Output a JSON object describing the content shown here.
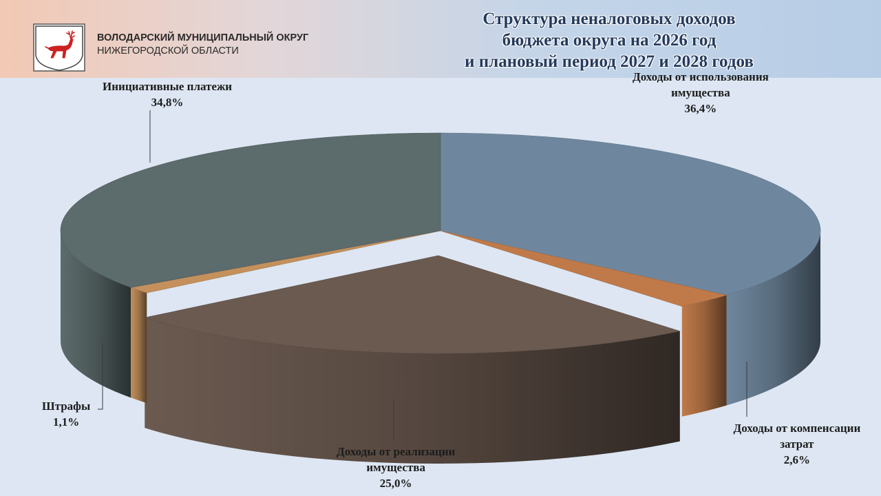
{
  "header": {
    "org_line1": "ВОЛОДАРСКИЙ МУНИЦИПАЛЬНЫЙ ОКРУГ",
    "org_line2": "НИЖЕГОРОДСКОЙ ОБЛАСТИ",
    "title_line1": "Структура неналоговых доходов",
    "title_line2": "бюджета округа на 2026 год",
    "title_line3": "и плановый период 2027 и 2028 годов"
  },
  "chart_data": {
    "type": "pie",
    "title": "Структура неналоговых доходов бюджета округа на 2026 год и плановый период 2027 и 2028 годов",
    "unit": "%",
    "slices": [
      {
        "label_lines": [
          "Доходы от использования",
          "имущества"
        ],
        "value": 36.4,
        "value_label": "36,4%",
        "color": "#6f879e"
      },
      {
        "label_lines": [
          "Доходы от компенсации",
          "затрат"
        ],
        "value": 2.6,
        "value_label": "2,6%",
        "color": "#c07a4a"
      },
      {
        "label_lines": [
          "Доходы от реализации",
          "имущества"
        ],
        "value": 25.0,
        "value_label": "25,0%",
        "color": "#6b5a50"
      },
      {
        "label_lines": [
          "Штрафы"
        ],
        "value": 1.1,
        "value_label": "1,1%",
        "color": "#c4905c"
      },
      {
        "label_lines": [
          "Инициативные платежи"
        ],
        "value": 34.8,
        "value_label": "34,8%",
        "color": "#5c6b6c"
      }
    ]
  }
}
